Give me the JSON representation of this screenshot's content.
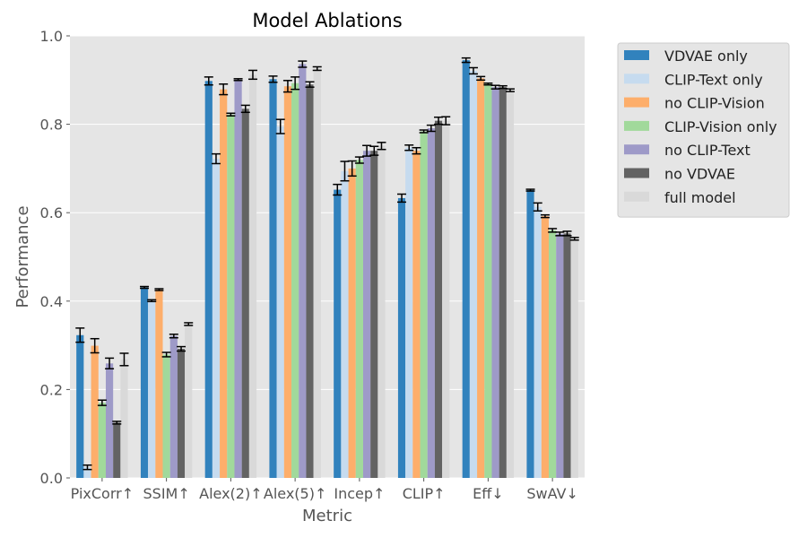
{
  "chart_data": {
    "type": "bar",
    "title": "Model Ablations",
    "xlabel": "Metric",
    "ylabel": "Performance",
    "ylim": [
      0,
      1.0
    ],
    "yticks": [
      "0.0",
      "0.2",
      "0.4",
      "0.6",
      "0.8",
      "1.0"
    ],
    "grid": true,
    "legend_position": "outside-top-right",
    "categories": [
      "PixCorr↑",
      "SSIM↑",
      "Alex(2)↑",
      "Alex(5)↑",
      "Incep↑",
      "CLIP↑",
      "Eff↓",
      "SwAV↓"
    ],
    "series": [
      {
        "name": "VDVAE only",
        "color": "#3182bd",
        "values": [
          0.323,
          0.431,
          0.898,
          0.902,
          0.652,
          0.633,
          0.945,
          0.651
        ],
        "errors": [
          0.016,
          0.002,
          0.009,
          0.007,
          0.012,
          0.009,
          0.005,
          0.002
        ]
      },
      {
        "name": "CLIP-Text only",
        "color": "#c6dbef",
        "values": [
          0.024,
          0.401,
          0.722,
          0.795,
          0.694,
          0.747,
          0.921,
          0.613
        ],
        "errors": [
          0.005,
          0.002,
          0.011,
          0.016,
          0.022,
          0.006,
          0.007,
          0.009
        ]
      },
      {
        "name": "no CLIP-Vision",
        "color": "#fdae6b",
        "values": [
          0.299,
          0.426,
          0.879,
          0.886,
          0.7,
          0.74,
          0.904,
          0.592
        ],
        "errors": [
          0.016,
          0.002,
          0.012,
          0.013,
          0.017,
          0.007,
          0.004,
          0.003
        ]
      },
      {
        "name": "CLIP-Vision only",
        "color": "#a1d99b",
        "values": [
          0.17,
          0.279,
          0.822,
          0.893,
          0.719,
          0.784,
          0.891,
          0.56
        ],
        "errors": [
          0.006,
          0.005,
          0.003,
          0.014,
          0.007,
          0.003,
          0.002,
          0.004
        ]
      },
      {
        "name": "no CLIP-Text",
        "color": "#9e9ac8",
        "values": [
          0.259,
          0.321,
          0.901,
          0.936,
          0.74,
          0.791,
          0.884,
          0.552
        ],
        "errors": [
          0.012,
          0.004,
          0.002,
          0.007,
          0.012,
          0.007,
          0.004,
          0.004
        ]
      },
      {
        "name": "no VDVAE",
        "color": "#636363",
        "values": [
          0.125,
          0.292,
          0.835,
          0.89,
          0.74,
          0.808,
          0.884,
          0.553
        ],
        "errors": [
          0.003,
          0.005,
          0.008,
          0.006,
          0.01,
          0.008,
          0.003,
          0.005
        ]
      },
      {
        "name": "full model",
        "color": "#d9d9d9",
        "values": [
          0.268,
          0.348,
          0.912,
          0.926,
          0.751,
          0.808,
          0.877,
          0.541
        ],
        "errors": [
          0.014,
          0.003,
          0.01,
          0.004,
          0.008,
          0.009,
          0.003,
          0.003
        ]
      }
    ]
  }
}
